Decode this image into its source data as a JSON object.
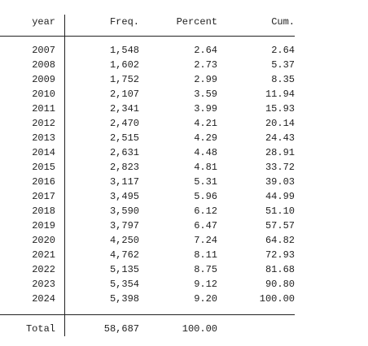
{
  "table": {
    "header": [
      "year",
      "Freq.",
      "Percent",
      "Cum."
    ],
    "rows": [
      [
        "2007",
        "1,548",
        "2.64",
        "2.64"
      ],
      [
        "2008",
        "1,602",
        "2.73",
        "5.37"
      ],
      [
        "2009",
        "1,752",
        "2.99",
        "8.35"
      ],
      [
        "2010",
        "2,107",
        "3.59",
        "11.94"
      ],
      [
        "2011",
        "2,341",
        "3.99",
        "15.93"
      ],
      [
        "2012",
        "2,470",
        "4.21",
        "20.14"
      ],
      [
        "2013",
        "2,515",
        "4.29",
        "24.43"
      ],
      [
        "2014",
        "2,631",
        "4.48",
        "28.91"
      ],
      [
        "2015",
        "2,823",
        "4.81",
        "33.72"
      ],
      [
        "2016",
        "3,117",
        "5.31",
        "39.03"
      ],
      [
        "2017",
        "3,495",
        "5.96",
        "44.99"
      ],
      [
        "2018",
        "3,590",
        "6.12",
        "51.10"
      ],
      [
        "2019",
        "3,797",
        "6.47",
        "57.57"
      ],
      [
        "2020",
        "4,250",
        "7.24",
        "64.82"
      ],
      [
        "2021",
        "4,762",
        "8.11",
        "72.93"
      ],
      [
        "2022",
        "5,135",
        "8.75",
        "81.68"
      ],
      [
        "2023",
        "5,354",
        "9.12",
        "90.80"
      ],
      [
        "2024",
        "5,398",
        "9.20",
        "100.00"
      ]
    ],
    "total": [
      "Total",
      "58,687",
      "100.00"
    ]
  }
}
